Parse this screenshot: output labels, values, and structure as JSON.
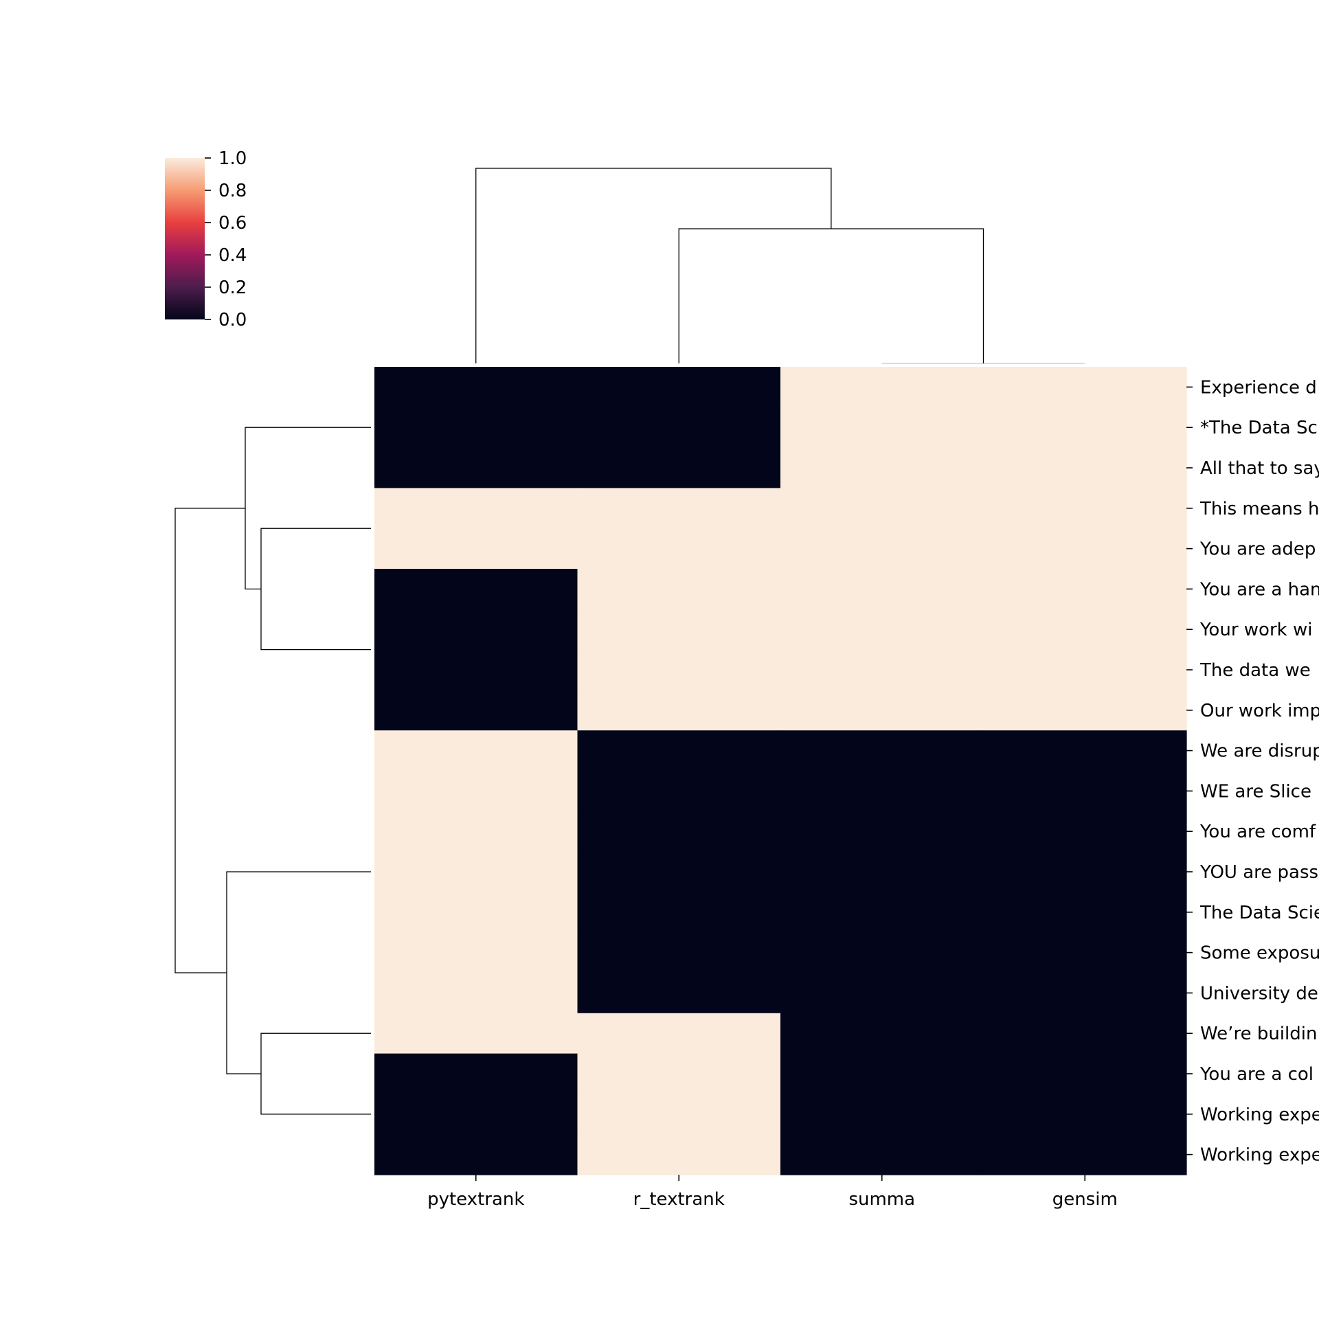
{
  "chart_data": {
    "type": "heatmap",
    "title": "",
    "xlabel": "",
    "ylabel": "",
    "columns": [
      "pytextrank",
      "r_textrank",
      "summa",
      "gensim"
    ],
    "rows": [
      "Experience d",
      "*The Data Sc",
      "All that to say",
      "This means h",
      "You are adep",
      "You are a han",
      "Your work wi",
      "The data we",
      "Our work imp",
      "We are disrup",
      "WE are Slice",
      "You are comf",
      "YOU are pass",
      "The Data Scie",
      "Some exposu",
      "University de",
      "We’re buildin",
      "You are a col",
      "Working expe",
      "Working expe"
    ],
    "values": [
      [
        0,
        0,
        1,
        1
      ],
      [
        0,
        0,
        1,
        1
      ],
      [
        0,
        0,
        1,
        1
      ],
      [
        1,
        1,
        1,
        1
      ],
      [
        1,
        1,
        1,
        1
      ],
      [
        0,
        1,
        1,
        1
      ],
      [
        0,
        1,
        1,
        1
      ],
      [
        0,
        1,
        1,
        1
      ],
      [
        0,
        1,
        1,
        1
      ],
      [
        1,
        0,
        0,
        0
      ],
      [
        1,
        0,
        0,
        0
      ],
      [
        1,
        0,
        0,
        0
      ],
      [
        1,
        0,
        0,
        0
      ],
      [
        1,
        0,
        0,
        0
      ],
      [
        1,
        0,
        0,
        0
      ],
      [
        1,
        0,
        0,
        0
      ],
      [
        1,
        1,
        0,
        0
      ],
      [
        0,
        1,
        0,
        0
      ],
      [
        0,
        1,
        0,
        0
      ],
      [
        0,
        1,
        0,
        0
      ]
    ],
    "colorbar": {
      "min": 0.0,
      "max": 1.0,
      "ticks": [
        "0.0",
        "0.2",
        "0.4",
        "0.6",
        "0.8",
        "1.0"
      ],
      "colormap": "rocket",
      "colors": [
        "#03051a",
        "#4c1d4b",
        "#a11a5b",
        "#e83f3f",
        "#f69c73",
        "#faebdd"
      ]
    },
    "grid": false,
    "dendrograms": [
      "top",
      "left"
    ]
  }
}
